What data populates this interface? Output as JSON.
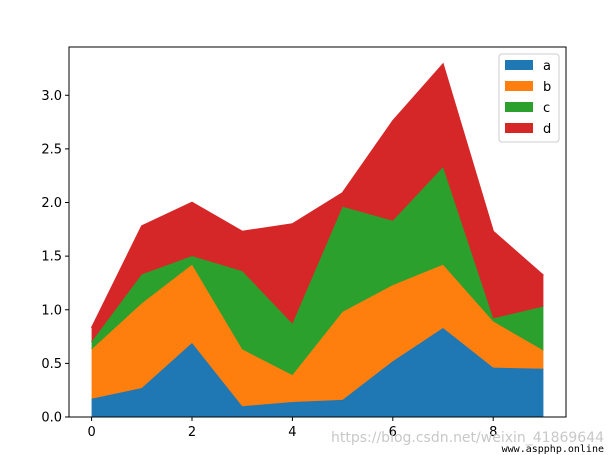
{
  "chart_data": {
    "type": "area",
    "stacked": true,
    "x": [
      0,
      1,
      2,
      3,
      4,
      5,
      6,
      7,
      8,
      9
    ],
    "series": [
      {
        "name": "a",
        "color": "#1f77b4",
        "values": [
          0.17,
          0.27,
          0.69,
          0.1,
          0.14,
          0.16,
          0.52,
          0.83,
          0.46,
          0.45
        ]
      },
      {
        "name": "b",
        "color": "#ff7f0e",
        "values": [
          0.46,
          0.79,
          0.73,
          0.53,
          0.25,
          0.82,
          0.71,
          0.59,
          0.43,
          0.17
        ]
      },
      {
        "name": "c",
        "color": "#2ca02c",
        "values": [
          0.07,
          0.27,
          0.08,
          0.73,
          0.48,
          0.98,
          0.6,
          0.91,
          0.03,
          0.41
        ]
      },
      {
        "name": "d",
        "color": "#d62728",
        "values": [
          0.13,
          0.45,
          0.5,
          0.37,
          0.93,
          0.13,
          0.93,
          0.96,
          0.81,
          0.29
        ]
      }
    ],
    "xlim": [
      -0.45,
      9.45
    ],
    "ylim": [
      0,
      3.45
    ],
    "xticks": [
      "0",
      "2",
      "4",
      "6",
      "8"
    ],
    "yticks": [
      "0.0",
      "0.5",
      "1.0",
      "1.5",
      "2.0",
      "2.5",
      "3.0"
    ],
    "legend": "top-right",
    "grid": false
  },
  "watermark": {
    "text": "https://blog.csdn.net/weixin_41869644",
    "site": "www.aspphp.online"
  }
}
